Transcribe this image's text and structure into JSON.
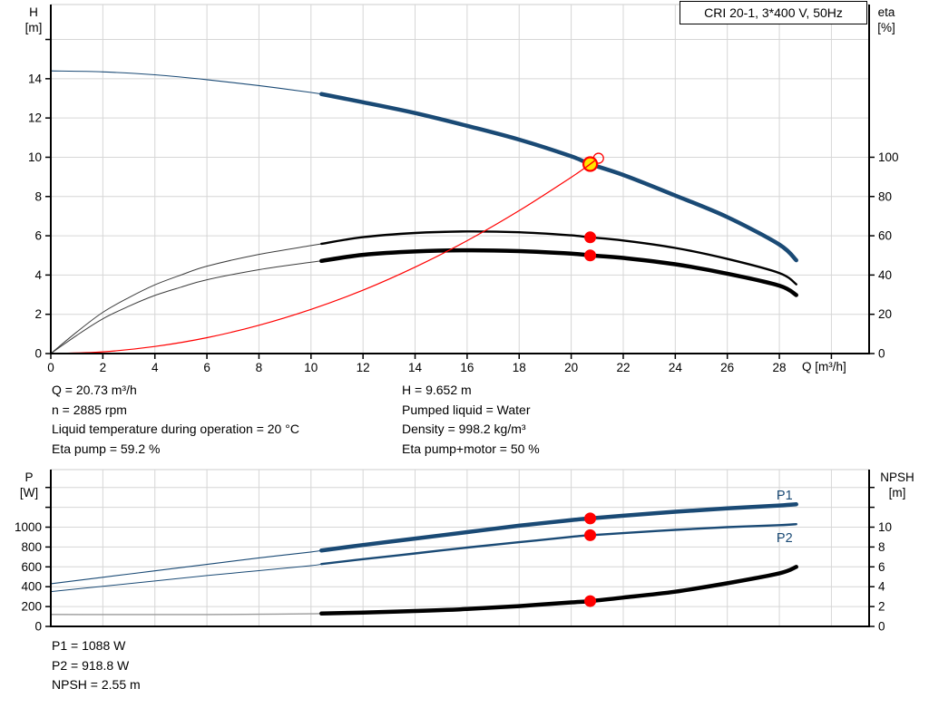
{
  "title_box": {
    "label": "CRI 20-1, 3*400 V, 50Hz"
  },
  "axis_labels": {
    "h": [
      "H",
      "[m]"
    ],
    "eta": [
      "eta",
      "[%]"
    ],
    "p": [
      "P",
      "[W]"
    ],
    "npsh": [
      "NPSH",
      "[m]"
    ],
    "q": "Q [m³/h]"
  },
  "info_left": [
    "Q = 20.73 m³/h",
    "n = 2885 rpm",
    "Liquid temperature during operation = 20 °C",
    "Eta pump = 59.2 %"
  ],
  "info_right": [
    "H = 9.652 m",
    "Pumped liquid = Water",
    "Density = 998.2 kg/m³",
    "Eta pump+motor = 50 %"
  ],
  "info_bottom": [
    "P1 = 1088 W",
    "P2 = 918.8 W",
    "NPSH = 2.55 m"
  ],
  "colors": {
    "curve_blue": "#1a4a75",
    "curve_black": "#000000",
    "eta_thin": "#3c3c3c",
    "npsh_thin": "#9a9a9a",
    "red": "#ff0000",
    "duty_yellow": "#ffe600",
    "grid": "#d6d6d6",
    "axis": "#000000",
    "text": "#000000"
  },
  "duty_point": {
    "q": 20.73,
    "h": 9.652,
    "eta_pump": 59.2,
    "eta_pump_motor": 50,
    "p1": 1088,
    "p2": 918.8,
    "npsh": 2.55
  },
  "chart_data": [
    {
      "type": "line",
      "id": "qh",
      "title": "CRI 20-1, 3*400 V, 50Hz",
      "xlabel": "Q [m³/h]",
      "ylabel_left": "H [m]",
      "ylabel_right": "eta [%]",
      "xlim": [
        0,
        31.45
      ],
      "ylim_left": [
        0,
        17.78
      ],
      "ylim_right": [
        0,
        177.8
      ],
      "grid": true,
      "grid_x": [
        2,
        4,
        6,
        8,
        10,
        12,
        14,
        16,
        18,
        20,
        22,
        24,
        26,
        28,
        30
      ],
      "x_ticks": [
        0,
        2,
        4,
        6,
        8,
        10,
        12,
        14,
        16,
        18,
        20,
        22,
        24,
        26,
        28
      ],
      "x_ticks_unlabeled": [
        30
      ],
      "y_ticks_left": [
        0,
        2,
        4,
        6,
        8,
        10,
        12,
        14
      ],
      "y_ticks_left_unlabeled": [
        16
      ],
      "y_ticks_right": [
        0,
        20,
        40,
        60,
        80,
        100
      ],
      "y_ticks_right_unlabeled": [],
      "series": [
        {
          "name": "qh-curve",
          "legend": "QH",
          "axis": "left",
          "color": "#1a4a75",
          "width": 4.5,
          "thin_width": 1.1,
          "thin_until": 10.4,
          "x": [
            0,
            2,
            4,
            6,
            8,
            10,
            10.4,
            12,
            14,
            16,
            18,
            20,
            20.73,
            22,
            24,
            26,
            28,
            28.65
          ],
          "y": [
            14.4,
            14.35,
            14.2,
            13.95,
            13.65,
            13.3,
            13.22,
            12.8,
            12.25,
            11.6,
            10.9,
            10.05,
            9.652,
            9.1,
            8.05,
            6.95,
            5.55,
            4.75
          ]
        },
        {
          "name": "eta-pump-curve",
          "legend": "Eta pump",
          "axis": "right",
          "color": "#000000",
          "thin_color": "#3c3c3c",
          "width": 2.4,
          "thin_width": 1.0,
          "thin_until": 10.4,
          "x": [
            0,
            1,
            2,
            3,
            4,
            5,
            6,
            8,
            10,
            10.4,
            12,
            14,
            16,
            18,
            20,
            20.73,
            22,
            24,
            26,
            28,
            28.65
          ],
          "y": [
            0,
            11,
            21,
            28.5,
            35,
            40,
            44.5,
            50.5,
            55,
            55.9,
            59.3,
            61.4,
            62.2,
            61.8,
            60.2,
            59.2,
            57.6,
            53.8,
            48.2,
            41,
            35.3
          ]
        },
        {
          "name": "eta-pump-motor-curve",
          "legend": "Eta pump+motor",
          "axis": "right",
          "color": "#000000",
          "thin_color": "#3c3c3c",
          "width": 4.5,
          "thin_width": 1.0,
          "thin_until": 10.4,
          "x": [
            0,
            1,
            2,
            3,
            4,
            5,
            6,
            8,
            10,
            10.4,
            12,
            14,
            16,
            18,
            20,
            20.73,
            22,
            24,
            26,
            28,
            28.65
          ],
          "y": [
            0,
            9.3,
            17.7,
            24.1,
            29.6,
            33.8,
            37.6,
            42.7,
            46.5,
            47.2,
            50.3,
            52,
            52.6,
            52.2,
            50.9,
            50,
            48.7,
            45.5,
            40.7,
            34.6,
            29.8
          ]
        },
        {
          "name": "system-curve",
          "legend": "System curve",
          "axis": "left",
          "color": "#ff0000",
          "width": 1.2,
          "x": [
            0,
            2,
            4,
            6,
            8,
            10,
            12,
            14,
            16,
            18,
            20,
            20.73
          ],
          "y": [
            0,
            0.09,
            0.36,
            0.81,
            1.44,
            2.25,
            3.23,
            4.4,
            5.75,
            7.28,
            8.98,
            9.652
          ]
        }
      ],
      "markers": [
        {
          "name": "system-curve-end-ring",
          "style": "ring",
          "axis": "left",
          "x": 21.05,
          "val": 9.95
        },
        {
          "name": "eta-pump-dot",
          "style": "dot",
          "axis": "right",
          "x": 20.73,
          "val": 59.2
        },
        {
          "name": "eta-pump-motor-dot",
          "style": "dot",
          "axis": "right",
          "x": 20.73,
          "val": 50
        },
        {
          "name": "duty-point-marker",
          "style": "duty",
          "axis": "left",
          "x": 20.73,
          "val": 9.652
        }
      ],
      "labels": []
    },
    {
      "type": "line",
      "id": "power",
      "title": "",
      "xlabel": "",
      "ylabel_left": "P [W]",
      "ylabel_right": "NPSH [m]",
      "xlim": [
        0,
        31.45
      ],
      "ylim_left": [
        0,
        1580
      ],
      "ylim_right": [
        0,
        15.8
      ],
      "grid": true,
      "grid_x": [
        2,
        4,
        6,
        8,
        10,
        12,
        14,
        16,
        18,
        20,
        22,
        24,
        26,
        28,
        30
      ],
      "x_ticks": [],
      "x_ticks_unlabeled": [],
      "y_ticks_left": [
        0,
        200,
        400,
        600,
        800,
        1000
      ],
      "y_ticks_left_unlabeled": [
        1200,
        1400
      ],
      "y_ticks_right": [
        0,
        2,
        4,
        6,
        8,
        10
      ],
      "y_ticks_right_unlabeled": [
        12,
        14
      ],
      "series": [
        {
          "name": "p2-curve",
          "legend": "P2",
          "axis": "left",
          "color": "#1a4a75",
          "width": 2.4,
          "thin_width": 1.0,
          "thin_until": 10.4,
          "x": [
            0,
            2,
            4,
            6,
            8,
            10,
            10.4,
            12,
            14,
            16,
            18,
            20,
            20.73,
            22,
            24,
            26,
            28,
            28.65
          ],
          "y": [
            350,
            405,
            458,
            512,
            562,
            612,
            628,
            678,
            735,
            795,
            848,
            902,
            918.8,
            940,
            973,
            1000,
            1020,
            1030
          ]
        },
        {
          "name": "p1-curve",
          "legend": "P1",
          "axis": "left",
          "color": "#1a4a75",
          "width": 4.5,
          "thin_width": 1.1,
          "thin_until": 10.4,
          "x": [
            0,
            2,
            4,
            6,
            8,
            10,
            10.4,
            12,
            14,
            16,
            18,
            20,
            20.73,
            22,
            24,
            26,
            28,
            28.65
          ],
          "y": [
            430,
            495,
            560,
            625,
            690,
            750,
            765,
            820,
            885,
            950,
            1015,
            1070,
            1088,
            1115,
            1155,
            1190,
            1218,
            1230
          ]
        },
        {
          "name": "npsh-curve",
          "legend": "NPSH",
          "axis": "right",
          "color": "#000000",
          "thin_color": "#9a9a9a",
          "width": 4.5,
          "thin_width": 1.4,
          "thin_until": 10.4,
          "x": [
            0,
            2,
            4,
            6,
            8,
            10,
            10.4,
            12,
            14,
            16,
            18,
            20,
            20.73,
            22,
            24,
            26,
            28,
            28.65
          ],
          "y": [
            1.2,
            1.2,
            1.2,
            1.2,
            1.22,
            1.27,
            1.3,
            1.4,
            1.55,
            1.75,
            2.05,
            2.42,
            2.55,
            2.9,
            3.5,
            4.35,
            5.35,
            6.0
          ]
        }
      ],
      "markers": [
        {
          "name": "p1-dot",
          "style": "dot",
          "axis": "left",
          "x": 20.73,
          "val": 1088
        },
        {
          "name": "p2-dot",
          "style": "dot",
          "axis": "left",
          "x": 20.73,
          "val": 918.8
        },
        {
          "name": "npsh-dot",
          "style": "dot",
          "axis": "right",
          "x": 20.73,
          "val": 2.55
        }
      ],
      "labels": [
        {
          "name": "p1-curve-label",
          "text": "P1",
          "axis": "left",
          "x": 28.2,
          "val": 1280,
          "color": "#1a4a75"
        },
        {
          "name": "p2-curve-label",
          "text": "P2",
          "axis": "left",
          "x": 28.2,
          "val": 849,
          "color": "#1a4a75"
        }
      ]
    }
  ]
}
